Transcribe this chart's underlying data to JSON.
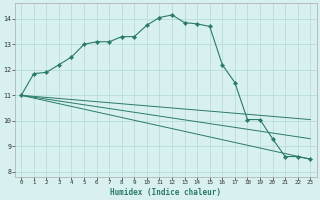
{
  "xlabel": "Humidex (Indice chaleur)",
  "bg_color": "#d8f0f0",
  "grid_color": "#b0d8d8",
  "line_color": "#2a7a6a",
  "xlim": [
    -0.5,
    23.5
  ],
  "ylim": [
    7.8,
    14.6
  ],
  "yticks": [
    8,
    9,
    10,
    11,
    12,
    13,
    14
  ],
  "xticks": [
    0,
    1,
    2,
    3,
    4,
    5,
    6,
    7,
    8,
    9,
    10,
    11,
    12,
    13,
    14,
    15,
    16,
    17,
    18,
    19,
    20,
    21,
    22,
    23
  ],
  "main_x": [
    0,
    1,
    2,
    3,
    4,
    5,
    6,
    7,
    8,
    9,
    10,
    11,
    12,
    13,
    14,
    15,
    16,
    17,
    18,
    19,
    20,
    21,
    22,
    23
  ],
  "main_y": [
    11.0,
    11.85,
    11.9,
    12.2,
    12.5,
    13.0,
    13.1,
    13.1,
    13.3,
    13.3,
    13.75,
    14.05,
    14.15,
    13.85,
    13.8,
    13.7,
    12.2,
    11.5,
    10.05,
    10.05,
    9.3,
    8.6,
    8.6,
    8.5
  ],
  "ref_lines": [
    {
      "x": [
        0,
        23
      ],
      "y": [
        11.0,
        8.5
      ]
    },
    {
      "x": [
        0,
        23
      ],
      "y": [
        11.0,
        9.3
      ]
    },
    {
      "x": [
        0,
        23
      ],
      "y": [
        11.0,
        10.05
      ]
    }
  ]
}
